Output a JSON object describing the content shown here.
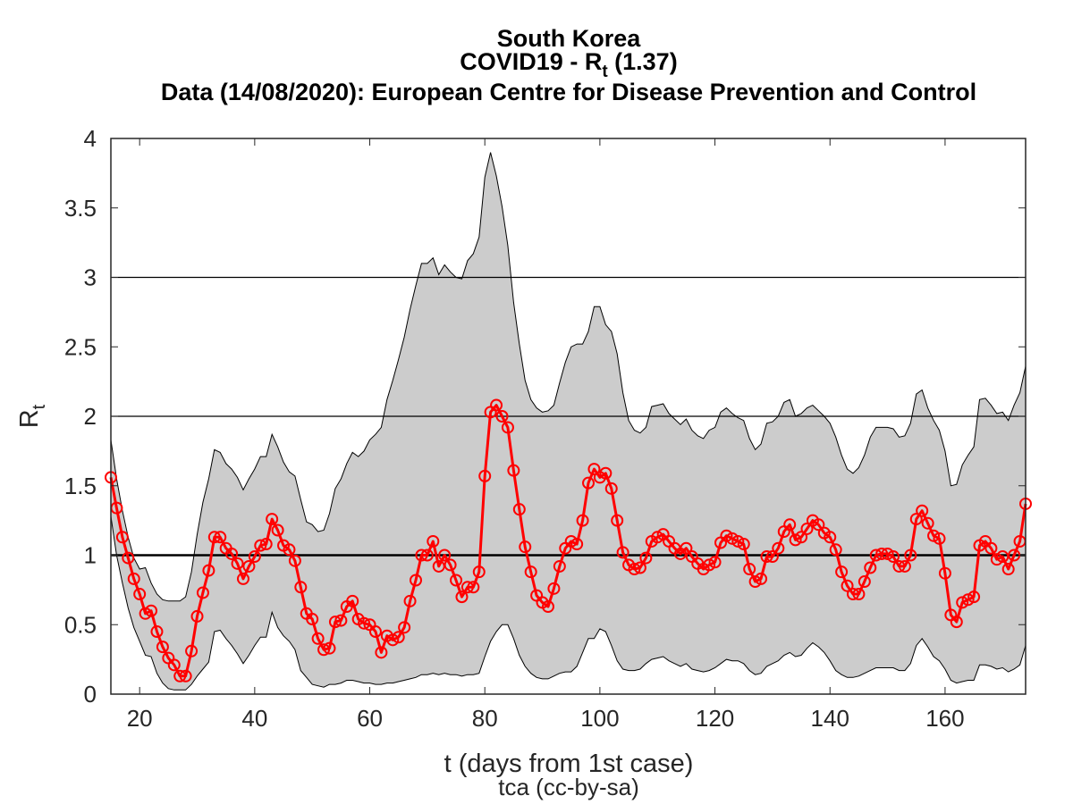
{
  "chart_data": {
    "type": "line",
    "title_lines": [
      "South Korea",
      "COVID19 - R",
      "Data (14/08/2020): European Centre for Disease Prevention and Control"
    ],
    "title_subscript": "t",
    "title_value": " (1.37)",
    "xlabel": "t (days from 1st case)",
    "ylabel": "R",
    "ylabel_subscript": "t",
    "credit": "tca (cc-by-sa)",
    "xlim": [
      15,
      174
    ],
    "ylim": [
      0,
      4
    ],
    "xticks": [
      20,
      40,
      60,
      80,
      100,
      120,
      140,
      160
    ],
    "yticks": [
      0,
      0.5,
      1,
      1.5,
      2,
      2.5,
      3,
      3.5,
      4
    ],
    "ytick_labels": [
      "0",
      "0.5",
      "1",
      "1.5",
      "2",
      "2.5",
      "3",
      "3.5",
      "4"
    ],
    "reference_lines": [
      1,
      2,
      3
    ],
    "legend": "none",
    "colors": {
      "series": "#ff0000",
      "band_fill": "#cccccc",
      "band_edge": "#000000",
      "ref_line": "#000000"
    },
    "x_start": 15,
    "series": [
      {
        "name": "Rt",
        "marker": "circle",
        "values": [
          1.56,
          1.34,
          1.13,
          0.98,
          0.83,
          0.72,
          0.58,
          0.6,
          0.45,
          0.34,
          0.26,
          0.21,
          0.13,
          0.13,
          0.31,
          0.56,
          0.73,
          0.89,
          1.13,
          1.13,
          1.05,
          1.01,
          0.94,
          0.83,
          0.92,
          0.99,
          1.07,
          1.08,
          1.26,
          1.18,
          1.07,
          1.04,
          0.96,
          0.77,
          0.58,
          0.54,
          0.4,
          0.32,
          0.33,
          0.52,
          0.53,
          0.63,
          0.67,
          0.54,
          0.51,
          0.5,
          0.45,
          0.3,
          0.42,
          0.39,
          0.41,
          0.48,
          0.67,
          0.82,
          1.0,
          1.0,
          1.1,
          0.92,
          1.0,
          0.93,
          0.82,
          0.7,
          0.77,
          0.77,
          0.88,
          1.57,
          2.03,
          2.08,
          2.0,
          1.92,
          1.61,
          1.33,
          1.06,
          0.88,
          0.71,
          0.66,
          0.63,
          0.76,
          0.92,
          1.05,
          1.1,
          1.08,
          1.25,
          1.52,
          1.62,
          1.56,
          1.59,
          1.48,
          1.25,
          1.02,
          0.93,
          0.9,
          0.91,
          0.98,
          1.1,
          1.13,
          1.15,
          1.1,
          1.05,
          1.01,
          1.05,
          0.99,
          0.94,
          0.9,
          0.93,
          0.95,
          1.09,
          1.14,
          1.12,
          1.1,
          1.08,
          0.9,
          0.81,
          0.83,
          0.99,
          0.99,
          1.05,
          1.17,
          1.22,
          1.11,
          1.13,
          1.19,
          1.25,
          1.22,
          1.16,
          1.13,
          1.04,
          0.88,
          0.78,
          0.72,
          0.72,
          0.81,
          0.91,
          1.0,
          1.01,
          1.01,
          0.99,
          0.92,
          0.92,
          1.0,
          1.26,
          1.32,
          1.23,
          1.14,
          1.12,
          0.87,
          0.57,
          0.52,
          0.66,
          0.68,
          0.7,
          1.07,
          1.1,
          1.05,
          0.97,
          0.99,
          0.9,
          1.0,
          1.1,
          1.37
        ]
      },
      {
        "name": "upper bound",
        "values": [
          1.83,
          1.55,
          1.32,
          1.13,
          0.98,
          0.9,
          0.91,
          0.8,
          0.72,
          0.68,
          0.67,
          0.67,
          0.67,
          0.7,
          0.88,
          1.15,
          1.38,
          1.55,
          1.76,
          1.74,
          1.66,
          1.62,
          1.56,
          1.47,
          1.55,
          1.62,
          1.71,
          1.71,
          1.87,
          1.78,
          1.67,
          1.6,
          1.57,
          1.4,
          1.24,
          1.22,
          1.17,
          1.18,
          1.3,
          1.48,
          1.55,
          1.66,
          1.74,
          1.71,
          1.75,
          1.83,
          1.87,
          1.92,
          2.12,
          2.26,
          2.41,
          2.57,
          2.77,
          2.94,
          3.1,
          3.1,
          3.14,
          3.02,
          3.09,
          3.04,
          3.0,
          2.99,
          3.12,
          3.17,
          3.29,
          3.72,
          3.9,
          3.73,
          3.51,
          3.23,
          2.82,
          2.52,
          2.26,
          2.12,
          2.06,
          2.03,
          2.04,
          2.08,
          2.24,
          2.39,
          2.5,
          2.52,
          2.52,
          2.61,
          2.79,
          2.79,
          2.66,
          2.61,
          2.45,
          2.17,
          1.97,
          1.9,
          1.88,
          1.92,
          2.07,
          2.08,
          2.09,
          2.02,
          1.98,
          1.94,
          1.98,
          1.9,
          1.86,
          1.84,
          1.9,
          1.92,
          2.03,
          2.06,
          2.02,
          1.99,
          1.97,
          1.84,
          1.76,
          1.8,
          1.95,
          1.96,
          2.0,
          2.1,
          2.12,
          2.0,
          2.02,
          2.06,
          2.08,
          2.04,
          2.0,
          1.95,
          1.85,
          1.72,
          1.62,
          1.59,
          1.63,
          1.72,
          1.85,
          1.92,
          1.92,
          1.92,
          1.91,
          1.85,
          1.86,
          1.95,
          2.16,
          2.19,
          2.06,
          1.97,
          1.9,
          1.75,
          1.5,
          1.51,
          1.65,
          1.72,
          1.78,
          2.12,
          2.13,
          2.08,
          2.02,
          2.03,
          1.97,
          2.08,
          2.17,
          2.36
        ]
      },
      {
        "name": "lower bound",
        "values": [
          1.28,
          1.0,
          0.8,
          0.62,
          0.48,
          0.38,
          0.28,
          0.27,
          0.15,
          0.08,
          0.04,
          0.03,
          0.03,
          0.03,
          0.07,
          0.13,
          0.18,
          0.23,
          0.45,
          0.46,
          0.4,
          0.35,
          0.29,
          0.22,
          0.28,
          0.35,
          0.41,
          0.41,
          0.59,
          0.48,
          0.42,
          0.38,
          0.32,
          0.17,
          0.12,
          0.07,
          0.06,
          0.05,
          0.07,
          0.07,
          0.08,
          0.1,
          0.1,
          0.09,
          0.08,
          0.08,
          0.07,
          0.07,
          0.08,
          0.08,
          0.09,
          0.1,
          0.11,
          0.12,
          0.14,
          0.14,
          0.15,
          0.14,
          0.15,
          0.14,
          0.14,
          0.13,
          0.14,
          0.14,
          0.15,
          0.27,
          0.38,
          0.45,
          0.5,
          0.5,
          0.4,
          0.28,
          0.2,
          0.15,
          0.12,
          0.11,
          0.11,
          0.13,
          0.15,
          0.16,
          0.16,
          0.2,
          0.3,
          0.4,
          0.4,
          0.47,
          0.45,
          0.35,
          0.24,
          0.18,
          0.17,
          0.17,
          0.18,
          0.22,
          0.25,
          0.26,
          0.27,
          0.24,
          0.22,
          0.2,
          0.22,
          0.18,
          0.17,
          0.16,
          0.17,
          0.19,
          0.22,
          0.25,
          0.24,
          0.24,
          0.22,
          0.17,
          0.14,
          0.15,
          0.2,
          0.22,
          0.24,
          0.28,
          0.3,
          0.27,
          0.28,
          0.33,
          0.37,
          0.34,
          0.3,
          0.24,
          0.17,
          0.14,
          0.12,
          0.12,
          0.13,
          0.15,
          0.17,
          0.19,
          0.19,
          0.19,
          0.19,
          0.17,
          0.17,
          0.22,
          0.35,
          0.4,
          0.34,
          0.27,
          0.24,
          0.18,
          0.1,
          0.08,
          0.09,
          0.1,
          0.1,
          0.21,
          0.21,
          0.2,
          0.18,
          0.19,
          0.16,
          0.18,
          0.21,
          0.35
        ]
      }
    ]
  }
}
